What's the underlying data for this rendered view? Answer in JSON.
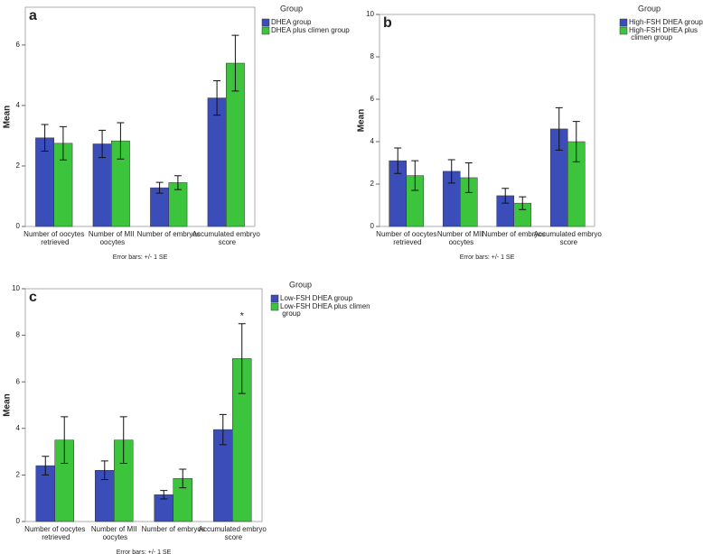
{
  "chart_data": [
    {
      "type": "bar",
      "panel_label": "a",
      "y_label": "Mean",
      "legend_title": "Group",
      "note": "Error bars: +/- 1 SE",
      "categories": [
        "Number of oocytes retrieved",
        "Number of MII oocytes",
        "Number of embryos",
        "Accumulated embryo score"
      ],
      "series": [
        {
          "name": "DHEA group",
          "color": "#3a4db8",
          "values": [
            2.93,
            2.73,
            1.28,
            4.25
          ],
          "errors": [
            0.44,
            0.45,
            0.18,
            0.57
          ]
        },
        {
          "name": "DHEA plus climen group",
          "color": "#3cc43c",
          "values": [
            2.75,
            2.83,
            1.45,
            5.4
          ],
          "errors": [
            0.55,
            0.6,
            0.23,
            0.92
          ]
        }
      ],
      "ylim": [
        0,
        7.25
      ],
      "yticks": [
        0,
        2,
        4,
        6
      ]
    },
    {
      "type": "bar",
      "panel_label": "b",
      "y_label": "Mean",
      "legend_title": "Group",
      "note": "Error bars: +/- 1 SE",
      "categories": [
        "Number of oocytes retrieved",
        "Number of MII oocytes",
        "Number of embryos",
        "Accumulated embryo score"
      ],
      "series": [
        {
          "name": "High-FSH DHEA group",
          "color": "#3a4db8",
          "values": [
            3.1,
            2.6,
            1.45,
            4.6
          ],
          "errors": [
            0.6,
            0.55,
            0.35,
            1.0
          ]
        },
        {
          "name": "High-FSH DHEA plus climen group",
          "color": "#3cc43c",
          "values": [
            2.4,
            2.3,
            1.1,
            4.0
          ],
          "errors": [
            0.7,
            0.7,
            0.3,
            0.95
          ]
        }
      ],
      "ylim": [
        0,
        10
      ],
      "yticks": [
        0,
        2,
        4,
        6,
        8,
        10
      ]
    },
    {
      "type": "bar",
      "panel_label": "c",
      "y_label": "Mean",
      "legend_title": "Group",
      "note": "Error bars: +/- 1 SE",
      "categories": [
        "Number of oocytes retrieved",
        "Number of MII oocytes",
        "Number of embryos",
        "Accumulated embryo score"
      ],
      "series": [
        {
          "name": "Low-FSH DHEA group",
          "color": "#3a4db8",
          "values": [
            2.4,
            2.2,
            1.15,
            3.95
          ],
          "errors": [
            0.4,
            0.4,
            0.18,
            0.65
          ]
        },
        {
          "name": "Low-FSH DHEA plus climen group",
          "color": "#3cc43c",
          "values": [
            3.5,
            3.5,
            1.85,
            7.0
          ],
          "errors": [
            1.0,
            1.0,
            0.4,
            1.5
          ]
        }
      ],
      "ylim": [
        0,
        10
      ],
      "yticks": [
        0,
        2,
        4,
        6,
        8,
        10
      ],
      "annotations": [
        {
          "text": "*"
        }
      ]
    }
  ]
}
